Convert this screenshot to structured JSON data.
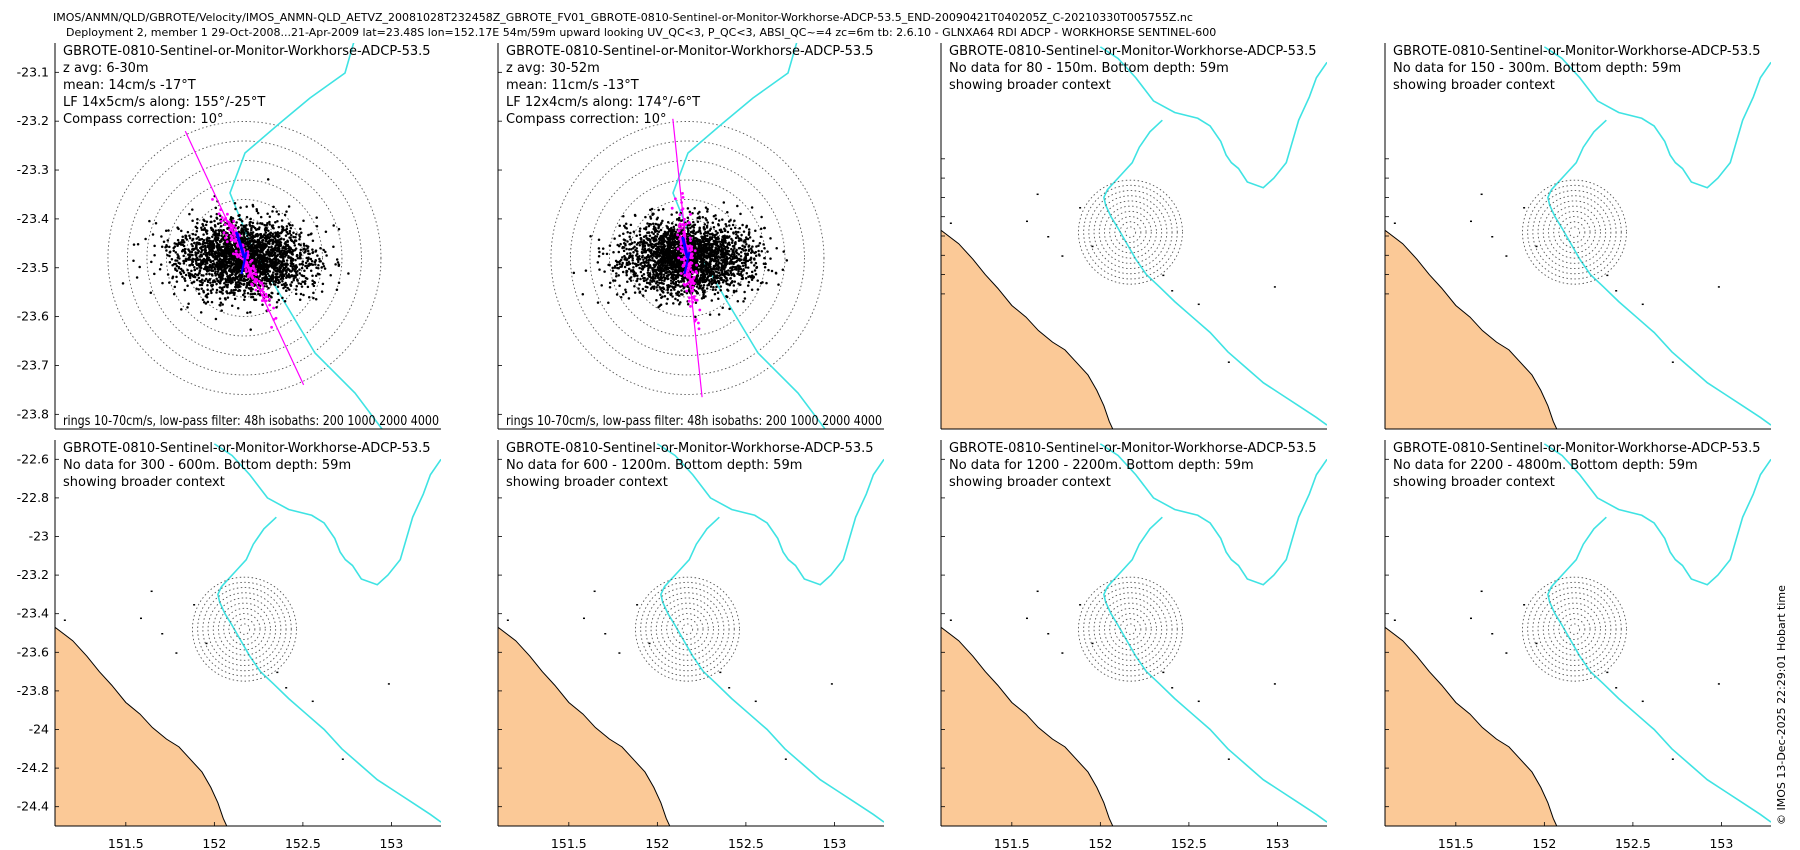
{
  "header": {
    "line1": "IMOS/ANMN/QLD/GBROTE/Velocity/IMOS_ANMN-QLD_AETVZ_20081028T232458Z_GBROTE_FV01_GBROTE-0810-Sentinel-or-Monitor-Workhorse-ADCP-53.5_END-20090421T040205Z_C-20210330T005755Z.nc",
    "line2": "Deployment 2, member 1 29-Oct-2008...21-Apr-2009 lat=23.48S lon=152.17E 54m/59m upward looking UV_QC<3, P_QC<3, ABSI_QC~=4 zc=6m tb: 2.6.10 - GLNXA64 RDI ADCP - WORKHORSE SENTINEL-600"
  },
  "side_label": "© IMOS 13-Dec-2025 22:29:01 Hobart time",
  "axes": {
    "x_ticks": [
      "151.5",
      "152",
      "152.5",
      "153"
    ],
    "y_ticks_top": [
      "-23.1",
      "-23.2",
      "-23.3",
      "-23.4",
      "-23.5",
      "-23.6",
      "-23.7",
      "-23.8"
    ],
    "y_ticks_bottom": [
      "-22.6",
      "-22.8",
      "-23",
      "-23.2",
      "-23.4",
      "-23.6",
      "-23.8",
      "-24",
      "-24.2",
      "-24.4"
    ]
  },
  "chart_data": [
    {
      "type": "scatter",
      "title": "GBROTE-0810-Sentinel-or-Monitor-Workhorse-ADCP-53.5",
      "lines": [
        "z avg: 6-30m",
        "mean: 14cm/s -17°T",
        "LF 14x5cm/s along: 155°/-25°T",
        "Compass correction: 10°"
      ],
      "footer": "rings 10-70cm/s, low-pass filter: 48h isobaths: 200 1000 2000 4000",
      "ring_speeds_cms": [
        10,
        20,
        30,
        40,
        50,
        60,
        70
      ],
      "xlim": [
        151.1,
        153.28
      ],
      "ylim": [
        -23.83,
        -23.04
      ],
      "mooring": {
        "lon": 152.17,
        "lat": -23.48
      },
      "mean_speed_cms": 14,
      "mean_dir_degT": -17,
      "principal_axis_degT": 155,
      "lf_major_cms": 14,
      "lf_minor_cms": 5
    },
    {
      "type": "scatter",
      "title": "GBROTE-0810-Sentinel-or-Monitor-Workhorse-ADCP-53.5",
      "lines": [
        "z avg: 30-52m",
        "mean: 11cm/s -13°T",
        "LF 12x4cm/s along: 174°/-6°T",
        "Compass correction: 10°"
      ],
      "footer": "rings 10-70cm/s, low-pass filter: 48h isobaths: 200 1000 2000 4000",
      "ring_speeds_cms": [
        10,
        20,
        30,
        40,
        50,
        60,
        70
      ],
      "xlim": [
        151.1,
        153.28
      ],
      "ylim": [
        -23.83,
        -23.04
      ],
      "mooring": {
        "lon": 152.17,
        "lat": -23.48
      },
      "mean_speed_cms": 11,
      "mean_dir_degT": -13,
      "principal_axis_degT": 174,
      "lf_major_cms": 12,
      "lf_minor_cms": 4
    },
    {
      "type": "map",
      "title": "GBROTE-0810-Sentinel-or-Monitor-Workhorse-ADCP-53.5",
      "lines": [
        "No data for 80 - 150m. Bottom depth: 59m",
        "showing broader context"
      ],
      "xlim": [
        151.1,
        153.28
      ],
      "ylim": [
        -24.5,
        -22.5
      ]
    },
    {
      "type": "map",
      "title": "GBROTE-0810-Sentinel-or-Monitor-Workhorse-ADCP-53.5",
      "lines": [
        "No data for 150 - 300m. Bottom depth: 59m",
        "showing broader context"
      ],
      "xlim": [
        151.1,
        153.28
      ],
      "ylim": [
        -24.5,
        -22.5
      ]
    },
    {
      "type": "map",
      "title": "GBROTE-0810-Sentinel-or-Monitor-Workhorse-ADCP-53.5",
      "lines": [
        "No data for 300 - 600m. Bottom depth: 59m",
        "showing broader context"
      ],
      "xlim": [
        151.1,
        153.28
      ],
      "ylim": [
        -24.5,
        -22.5
      ]
    },
    {
      "type": "map",
      "title": "GBROTE-0810-Sentinel-or-Monitor-Workhorse-ADCP-53.5",
      "lines": [
        "No data for 600 - 1200m. Bottom depth: 59m",
        "showing broader context"
      ],
      "xlim": [
        151.1,
        153.28
      ],
      "ylim": [
        -24.5,
        -22.5
      ]
    },
    {
      "type": "map",
      "title": "GBROTE-0810-Sentinel-or-Monitor-Workhorse-ADCP-53.5",
      "lines": [
        "No data for 1200 - 2200m. Bottom depth: 59m",
        "showing broader context"
      ],
      "xlim": [
        151.1,
        153.28
      ],
      "ylim": [
        -24.5,
        -22.5
      ]
    },
    {
      "type": "map",
      "title": "GBROTE-0810-Sentinel-or-Monitor-Workhorse-ADCP-53.5",
      "lines": [
        "No data for 2200 - 4800m. Bottom depth: 59m",
        "showing broader context"
      ],
      "xlim": [
        151.1,
        153.28
      ],
      "ylim": [
        -24.5,
        -22.5
      ]
    }
  ],
  "colors": {
    "isobath": "#3fe3e3",
    "land": "#fbc997",
    "scatter": "#000000",
    "lowpass": "#ff00ff",
    "mean_vector": "#0000ff",
    "rings": "#555555"
  }
}
